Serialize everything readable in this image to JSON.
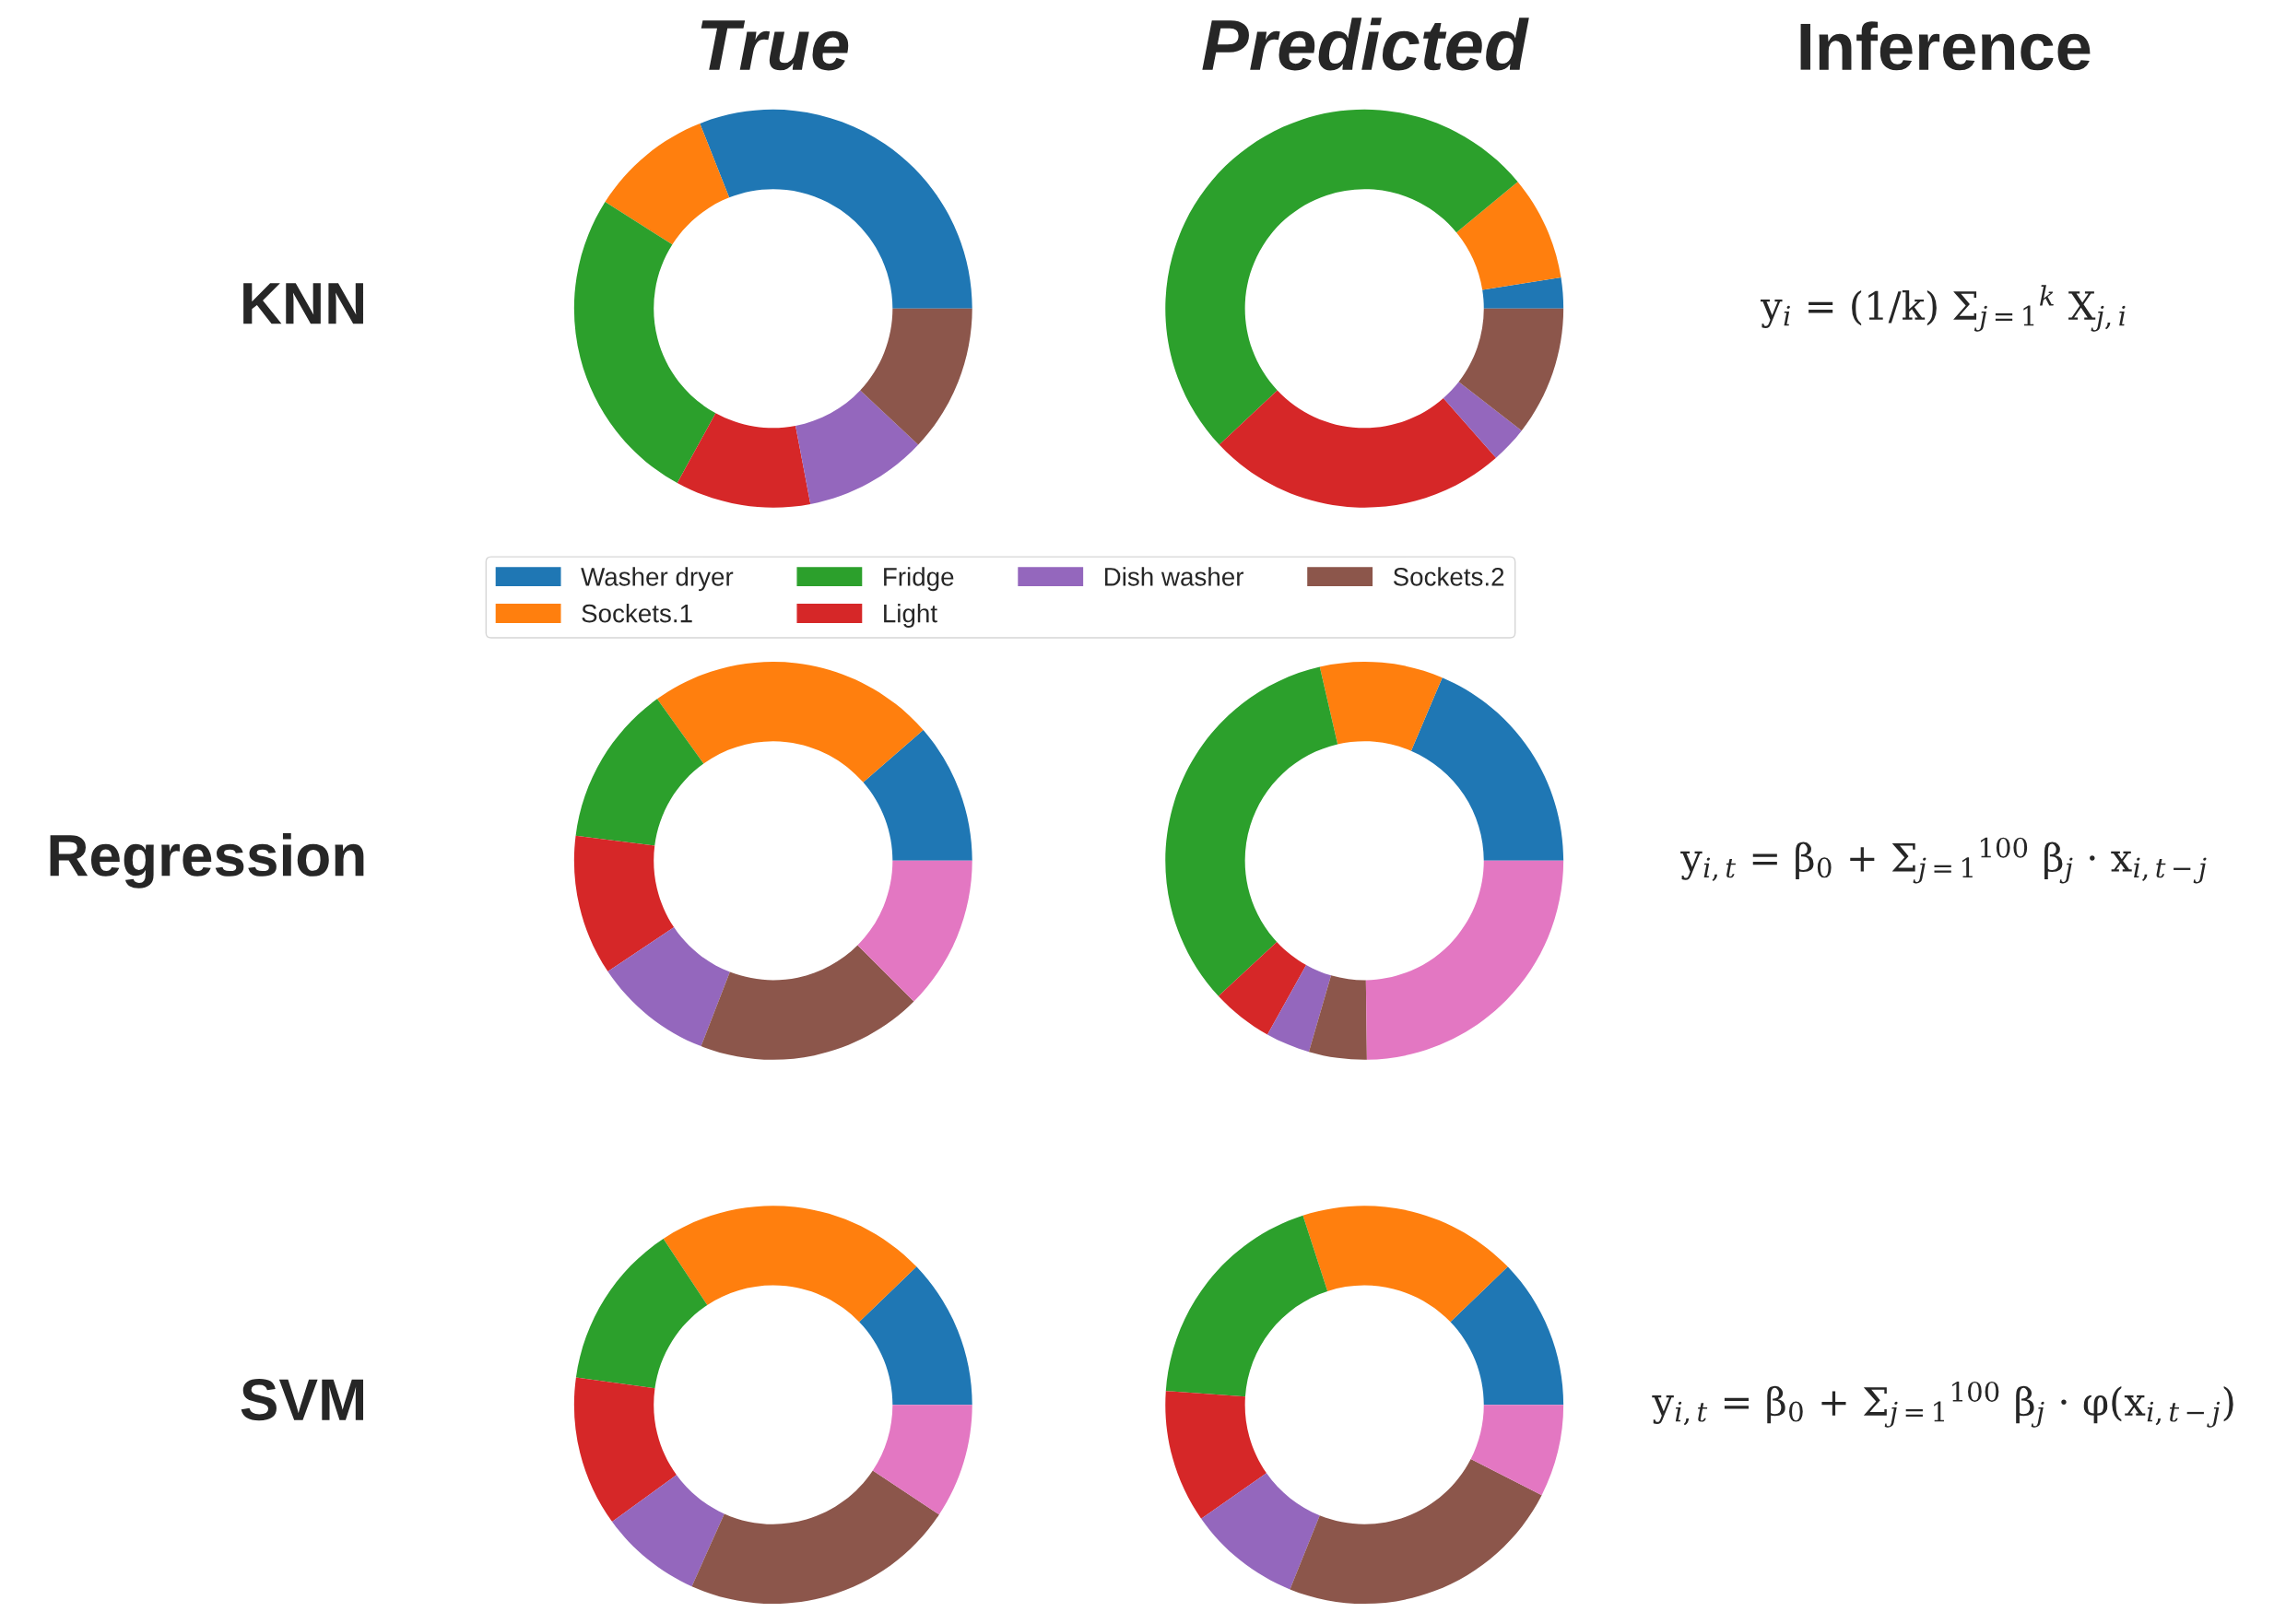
{
  "chart_data": [
    {
      "type": "donut",
      "title": "True",
      "ylabel": "KNN",
      "legend": "bottom",
      "categories": [
        "Washer dryer",
        "Sockets.1",
        "Fridge",
        "Light",
        "Dish washer",
        "Sockets.2"
      ],
      "values": [
        31,
        10,
        26,
        11,
        10,
        12
      ],
      "colors": [
        "#1f77b4",
        "#ff7f0e",
        "#2ca02c",
        "#d62728",
        "#9467bd",
        "#8c564b"
      ]
    },
    {
      "type": "donut",
      "title": "Predicted",
      "categories": [
        null,
        null,
        null,
        null,
        null,
        null
      ],
      "values": [
        2.5,
        8.5,
        51,
        24.5,
        3,
        10.5
      ],
      "colors": [
        "#1f77b4",
        "#ff7f0e",
        "#2ca02c",
        "#d62728",
        "#9467bd",
        "#8c564b"
      ]
    },
    {
      "type": "other",
      "title": "Inference",
      "annotations": [
        "y$_{i}$ = (1/k) Σ$_{j=1}$$^{k}$ X$_{j,i}$"
      ]
    },
    {
      "type": "donut",
      "ylabel": "Regression",
      "categories": [
        null,
        null,
        null,
        null,
        null,
        null,
        null
      ],
      "values": [
        11.4,
        23.5,
        13.1,
        11.4,
        9.7,
        18.4,
        12.5
      ],
      "colors": [
        "#1f77b4",
        "#ff7f0e",
        "#2ca02c",
        "#d62728",
        "#9467bd",
        "#8c564b",
        "#e377c2"
      ]
    },
    {
      "type": "donut",
      "categories": [
        null,
        null,
        null,
        null,
        null,
        null,
        null
      ],
      "values": [
        18.6,
        10,
        33.3,
        5,
        3.6,
        4.7,
        24.8
      ],
      "colors": [
        "#1f77b4",
        "#ff7f0e",
        "#2ca02c",
        "#d62728",
        "#9467bd",
        "#8c564b",
        "#e377c2"
      ]
    },
    {
      "type": "other",
      "annotations": [
        "y$_{i,t}$ = β$_{0}$ + Σ$_{j=1}$$^{100}$ β$_{j}$ · x$_{i,t−j}$"
      ]
    },
    {
      "type": "donut",
      "ylabel": "SVM",
      "categories": [
        null,
        null,
        null,
        null,
        null,
        null,
        null
      ],
      "values": [
        12.2,
        22.1,
        13.5,
        12.2,
        8.3,
        22.4,
        9.3
      ],
      "colors": [
        "#1f77b4",
        "#ff7f0e",
        "#2ca02c",
        "#d62728",
        "#9467bd",
        "#8c564b",
        "#e377c2"
      ]
    },
    {
      "type": "donut",
      "categories": [
        null,
        null,
        null,
        null,
        null,
        null,
        null
      ],
      "values": [
        12.2,
        17.8,
        18.9,
        10.8,
        9.2,
        23.6,
        7.5
      ],
      "colors": [
        "#1f77b4",
        "#ff7f0e",
        "#2ca02c",
        "#d62728",
        "#9467bd",
        "#8c564b",
        "#e377c2"
      ]
    },
    {
      "type": "other",
      "annotations": [
        "y$_{i,t}$ = β$_{0}$ + Σ$_{j=1}$$^{100}$ β$_{j}$ · φ(x$_{i,t−j}$)"
      ]
    }
  ]
}
